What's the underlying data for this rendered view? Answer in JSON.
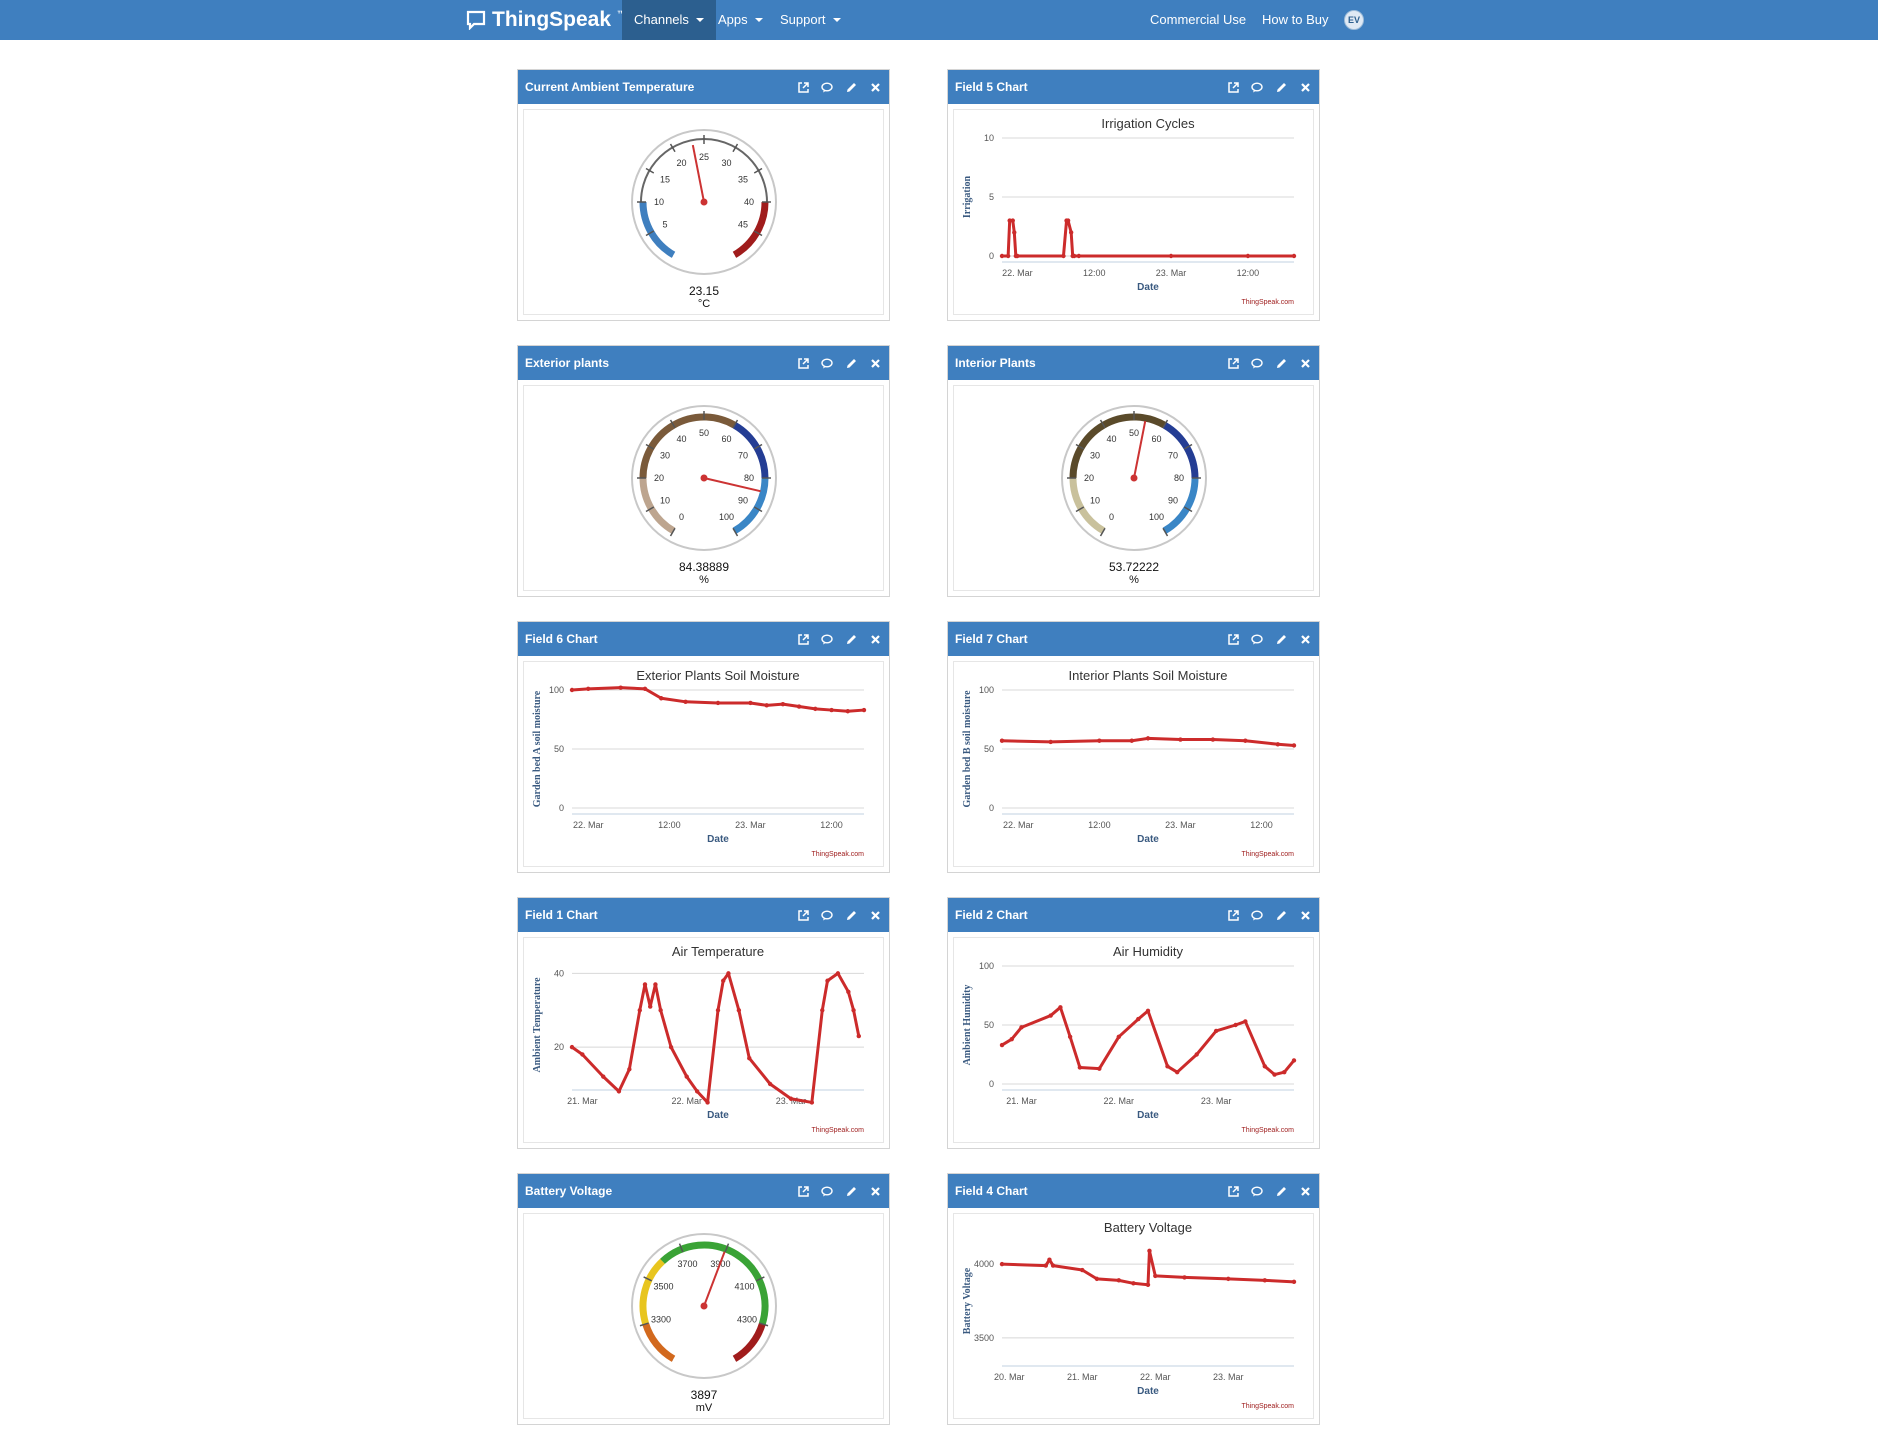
{
  "navbar": {
    "brand": "ThingSpeak",
    "trademark": "™",
    "items": [
      {
        "label": "Channels",
        "active": true
      },
      {
        "label": "Apps",
        "active": false
      },
      {
        "label": "Support",
        "active": false
      }
    ],
    "right_items": [
      {
        "label": "Commercial Use"
      },
      {
        "label": "How to Buy"
      }
    ],
    "avatar_initials": "EV"
  },
  "widgets": [
    {
      "title": "Current Ambient Temperature"
    },
    {
      "title": "Field 5 Chart"
    },
    {
      "title": "Exterior plants"
    },
    {
      "title": "Interior Plants"
    },
    {
      "title": "Field 6 Chart"
    },
    {
      "title": "Field 7 Chart"
    },
    {
      "title": "Field 1 Chart"
    },
    {
      "title": "Field 2 Chart"
    },
    {
      "title": "Battery Voltage"
    },
    {
      "title": "Field 4 Chart"
    }
  ],
  "gauges": [
    {
      "widget": 0,
      "min": 0,
      "max": 50,
      "value": 23.15,
      "display_value": "23.15",
      "units": "°C",
      "ticks": [
        "5",
        "10",
        "15",
        "20",
        "25",
        "30",
        "35",
        "40",
        "45"
      ],
      "bands": [
        {
          "from": 0,
          "to": 10,
          "color": "#3f7fbf"
        },
        {
          "from": 40,
          "to": 50,
          "color": "#a01c1c"
        }
      ]
    },
    {
      "widget": 2,
      "min": 0,
      "max": 100,
      "value": 84.38889,
      "display_value": "84.38889",
      "units": "%",
      "ticks": [
        "0",
        "10",
        "20",
        "30",
        "40",
        "50",
        "60",
        "70",
        "80",
        "90",
        "100"
      ],
      "bands": [
        {
          "from": 0,
          "to": 20,
          "color": "#bda58f"
        },
        {
          "from": 20,
          "to": 60,
          "color": "#7a5a3a"
        },
        {
          "from": 60,
          "to": 80,
          "color": "#243d94"
        },
        {
          "from": 80,
          "to": 100,
          "color": "#3a86c6"
        }
      ]
    },
    {
      "widget": 3,
      "min": 0,
      "max": 100,
      "value": 53.72222,
      "display_value": "53.72222",
      "units": "%",
      "ticks": [
        "0",
        "10",
        "20",
        "30",
        "40",
        "50",
        "60",
        "70",
        "80",
        "90",
        "100"
      ],
      "bands": [
        {
          "from": 0,
          "to": 20,
          "color": "#c9c19c"
        },
        {
          "from": 20,
          "to": 60,
          "color": "#5a4a2a"
        },
        {
          "from": 60,
          "to": 80,
          "color": "#243d94"
        },
        {
          "from": 80,
          "to": 100,
          "color": "#3a86c6"
        }
      ]
    },
    {
      "widget": 8,
      "min": 3100,
      "max": 4500,
      "value": 3897,
      "display_value": "3897",
      "units": "mV",
      "ticks": [
        "3300",
        "3500",
        "3700",
        "3900",
        "4100",
        "4300"
      ],
      "bands": [
        {
          "from": 3100,
          "to": 3300,
          "color": "#d2691e"
        },
        {
          "from": 3300,
          "to": 3600,
          "color": "#e8c51f"
        },
        {
          "from": 3600,
          "to": 4300,
          "color": "#3aa336"
        },
        {
          "from": 4300,
          "to": 4500,
          "color": "#a01c1c"
        }
      ]
    }
  ],
  "chart_data": [
    {
      "widget": 1,
      "type": "line",
      "title": "Irrigation Cycles",
      "xlabel": "Date",
      "ylabel": "Irrigation",
      "credit": "ThingSpeak.com",
      "ylim": [
        0,
        10
      ],
      "yticks": [
        "0",
        "5",
        "10"
      ],
      "xlim": [
        -0.1,
        1.8
      ],
      "xticks": [
        {
          "x": 0,
          "label": "22. Mar"
        },
        {
          "x": 0.5,
          "label": "12:00"
        },
        {
          "x": 1,
          "label": "23. Mar"
        },
        {
          "x": 1.5,
          "label": "12:00"
        }
      ],
      "series": [
        {
          "x": [
            -0.1,
            -0.06,
            -0.05,
            -0.03,
            -0.02,
            -0.01,
            0,
            0.3,
            0.32,
            0.33,
            0.35,
            0.36,
            0.37,
            0.4,
            1,
            1.5,
            1.8
          ],
          "values": [
            0,
            0,
            3,
            3,
            2,
            0,
            0,
            0,
            3,
            3,
            2,
            0,
            0,
            0,
            0,
            0,
            0
          ]
        }
      ]
    },
    {
      "widget": 4,
      "type": "line",
      "title": "Exterior Plants Soil Moisture",
      "xlabel": "Date",
      "ylabel": "Garden bed A soil moisture",
      "credit": "ThingSpeak.com",
      "ylim": [
        0,
        100
      ],
      "yticks": [
        "0",
        "50",
        "100"
      ],
      "xlim": [
        -0.1,
        1.7
      ],
      "xticks": [
        {
          "x": 0,
          "label": "22. Mar"
        },
        {
          "x": 0.5,
          "label": "12:00"
        },
        {
          "x": 1,
          "label": "23. Mar"
        },
        {
          "x": 1.5,
          "label": "12:00"
        }
      ],
      "series": [
        {
          "x": [
            -0.1,
            0,
            0.2,
            0.35,
            0.45,
            0.6,
            0.8,
            1,
            1.1,
            1.2,
            1.3,
            1.4,
            1.5,
            1.6,
            1.7
          ],
          "values": [
            100,
            101,
            102,
            101,
            93,
            90,
            89,
            89,
            87,
            88,
            86,
            84,
            83,
            82,
            83
          ]
        }
      ]
    },
    {
      "widget": 5,
      "type": "line",
      "title": "Interior Plants Soil Moisture",
      "xlabel": "Date",
      "ylabel": "Garden bed B soil moisture",
      "credit": "ThingSpeak.com",
      "ylim": [
        0,
        100
      ],
      "yticks": [
        "0",
        "50",
        "100"
      ],
      "xlim": [
        -0.1,
        1.7
      ],
      "xticks": [
        {
          "x": 0,
          "label": "22. Mar"
        },
        {
          "x": 0.5,
          "label": "12:00"
        },
        {
          "x": 1,
          "label": "23. Mar"
        },
        {
          "x": 1.5,
          "label": "12:00"
        }
      ],
      "series": [
        {
          "x": [
            -0.1,
            0.2,
            0.5,
            0.7,
            0.8,
            1,
            1.2,
            1.4,
            1.6,
            1.7
          ],
          "values": [
            57,
            56,
            57,
            57,
            59,
            58,
            58,
            57,
            54,
            53
          ]
        }
      ]
    },
    {
      "widget": 6,
      "type": "line",
      "title": "Air Temperature",
      "xlabel": "Date",
      "ylabel": "Ambient Temperature",
      "credit": "ThingSpeak.com",
      "ylim": [
        10,
        42
      ],
      "yticks": [
        "20",
        "40"
      ],
      "xlim": [
        -0.1,
        2.7
      ],
      "xticks": [
        {
          "x": 0,
          "label": "21. Mar"
        },
        {
          "x": 1,
          "label": "22. Mar"
        },
        {
          "x": 2,
          "label": "23. Mar"
        }
      ],
      "series": [
        {
          "x": [
            -0.1,
            0,
            0.2,
            0.35,
            0.45,
            0.55,
            0.6,
            0.65,
            0.7,
            0.75,
            0.85,
            1,
            1.1,
            1.2,
            1.3,
            1.35,
            1.4,
            1.5,
            1.6,
            1.8,
            2,
            2.2,
            2.3,
            2.35,
            2.45,
            2.55,
            2.6,
            2.65
          ],
          "values": [
            20,
            18,
            12,
            8,
            14,
            30,
            37,
            31,
            37,
            30,
            20,
            12,
            8,
            5,
            30,
            38,
            40,
            30,
            17,
            10,
            6,
            5,
            30,
            38,
            40,
            35,
            30,
            23
          ]
        }
      ]
    },
    {
      "widget": 7,
      "type": "line",
      "title": "Air Humidity",
      "xlabel": "Date",
      "ylabel": "Ambient Humidity",
      "credit": "ThingSpeak.com",
      "ylim": [
        0,
        100
      ],
      "yticks": [
        "0",
        "50",
        "100"
      ],
      "xlim": [
        -0.2,
        2.8
      ],
      "xticks": [
        {
          "x": 0,
          "label": "21. Mar"
        },
        {
          "x": 1,
          "label": "22. Mar"
        },
        {
          "x": 2,
          "label": "23. Mar"
        }
      ],
      "series": [
        {
          "x": [
            -0.2,
            -0.1,
            0,
            0.3,
            0.4,
            0.5,
            0.6,
            0.8,
            1,
            1.2,
            1.3,
            1.5,
            1.6,
            1.8,
            2,
            2.2,
            2.3,
            2.5,
            2.6,
            2.7,
            2.8
          ],
          "values": [
            33,
            38,
            48,
            58,
            65,
            40,
            14,
            13,
            40,
            55,
            62,
            15,
            10,
            25,
            45,
            50,
            53,
            15,
            8,
            10,
            20
          ]
        }
      ]
    },
    {
      "widget": 9,
      "type": "line",
      "title": "Battery Voltage",
      "xlabel": "Date",
      "ylabel": "Battery Voltage",
      "credit": "ThingSpeak.com",
      "ylim": [
        3350,
        4150
      ],
      "yticks": [
        "3500",
        "4000"
      ],
      "xlim": [
        -0.1,
        3.9
      ],
      "xticks": [
        {
          "x": 0,
          "label": "20. Mar"
        },
        {
          "x": 1,
          "label": "21. Mar"
        },
        {
          "x": 2,
          "label": "22. Mar"
        },
        {
          "x": 3,
          "label": "23. Mar"
        }
      ],
      "series": [
        {
          "x": [
            -0.1,
            0.5,
            0.55,
            0.6,
            1,
            1.2,
            1.5,
            1.7,
            1.9,
            1.92,
            2,
            2.4,
            3,
            3.5,
            3.9
          ],
          "values": [
            4000,
            3990,
            4030,
            3990,
            3960,
            3900,
            3890,
            3870,
            3860,
            4090,
            3920,
            3910,
            3900,
            3890,
            3880
          ]
        }
      ]
    }
  ]
}
